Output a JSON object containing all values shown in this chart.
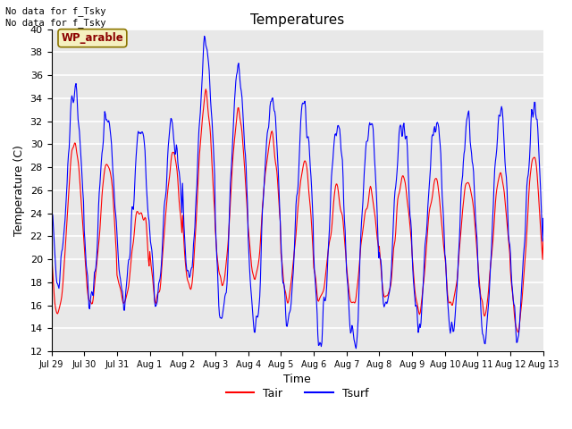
{
  "title": "Temperatures",
  "xlabel": "Time",
  "ylabel": "Temperature (C)",
  "ylim": [
    12,
    40
  ],
  "yticks": [
    12,
    14,
    16,
    18,
    20,
    22,
    24,
    26,
    28,
    30,
    32,
    34,
    36,
    38,
    40
  ],
  "num_days": 16,
  "annotation_text": "No data for f_Tsky\nNo data for f_Tsky",
  "box_label": "WP_arable",
  "legend_labels": [
    "Tair",
    "Tsurf"
  ],
  "line_colors": [
    "red",
    "blue"
  ],
  "background_color": "#e8e8e8",
  "grid_color": "white",
  "tick_labels": [
    "Jul 29",
    "Jul 30",
    "Jul 31",
    "Aug 1",
    "Aug 2",
    "Aug 3",
    "Aug 4",
    "Aug 5",
    "Aug 6",
    "Aug 7",
    "Aug 8",
    "Aug 9",
    "Aug 10",
    "Aug 11",
    "Aug 12",
    "Aug 13"
  ],
  "tair_daily_min": [
    15.2,
    16.2,
    16.5,
    16.5,
    17.5,
    17.5,
    18.5,
    16.5,
    16.5,
    16.0,
    16.5,
    16.0,
    16.0,
    15.5,
    13.5,
    18.0
  ],
  "tair_daily_max": [
    30.0,
    28.5,
    24.5,
    29.0,
    34.0,
    32.5,
    30.5,
    28.0,
    26.0,
    26.0,
    27.0,
    27.0,
    27.0,
    27.5,
    29.0,
    29.0
  ],
  "tsurf_daily_min": [
    18.0,
    17.0,
    17.0,
    16.5,
    18.5,
    15.0,
    14.0,
    14.5,
    13.5,
    13.0,
    15.5,
    15.0,
    13.5,
    13.0,
    13.0,
    18.0
  ],
  "tsurf_daily_max": [
    34.5,
    32.0,
    31.5,
    32.0,
    38.0,
    36.5,
    34.0,
    33.5,
    31.5,
    32.0,
    32.0,
    32.0,
    32.0,
    32.5,
    33.5,
    33.5
  ],
  "figsize": [
    6.4,
    4.8
  ],
  "dpi": 100
}
